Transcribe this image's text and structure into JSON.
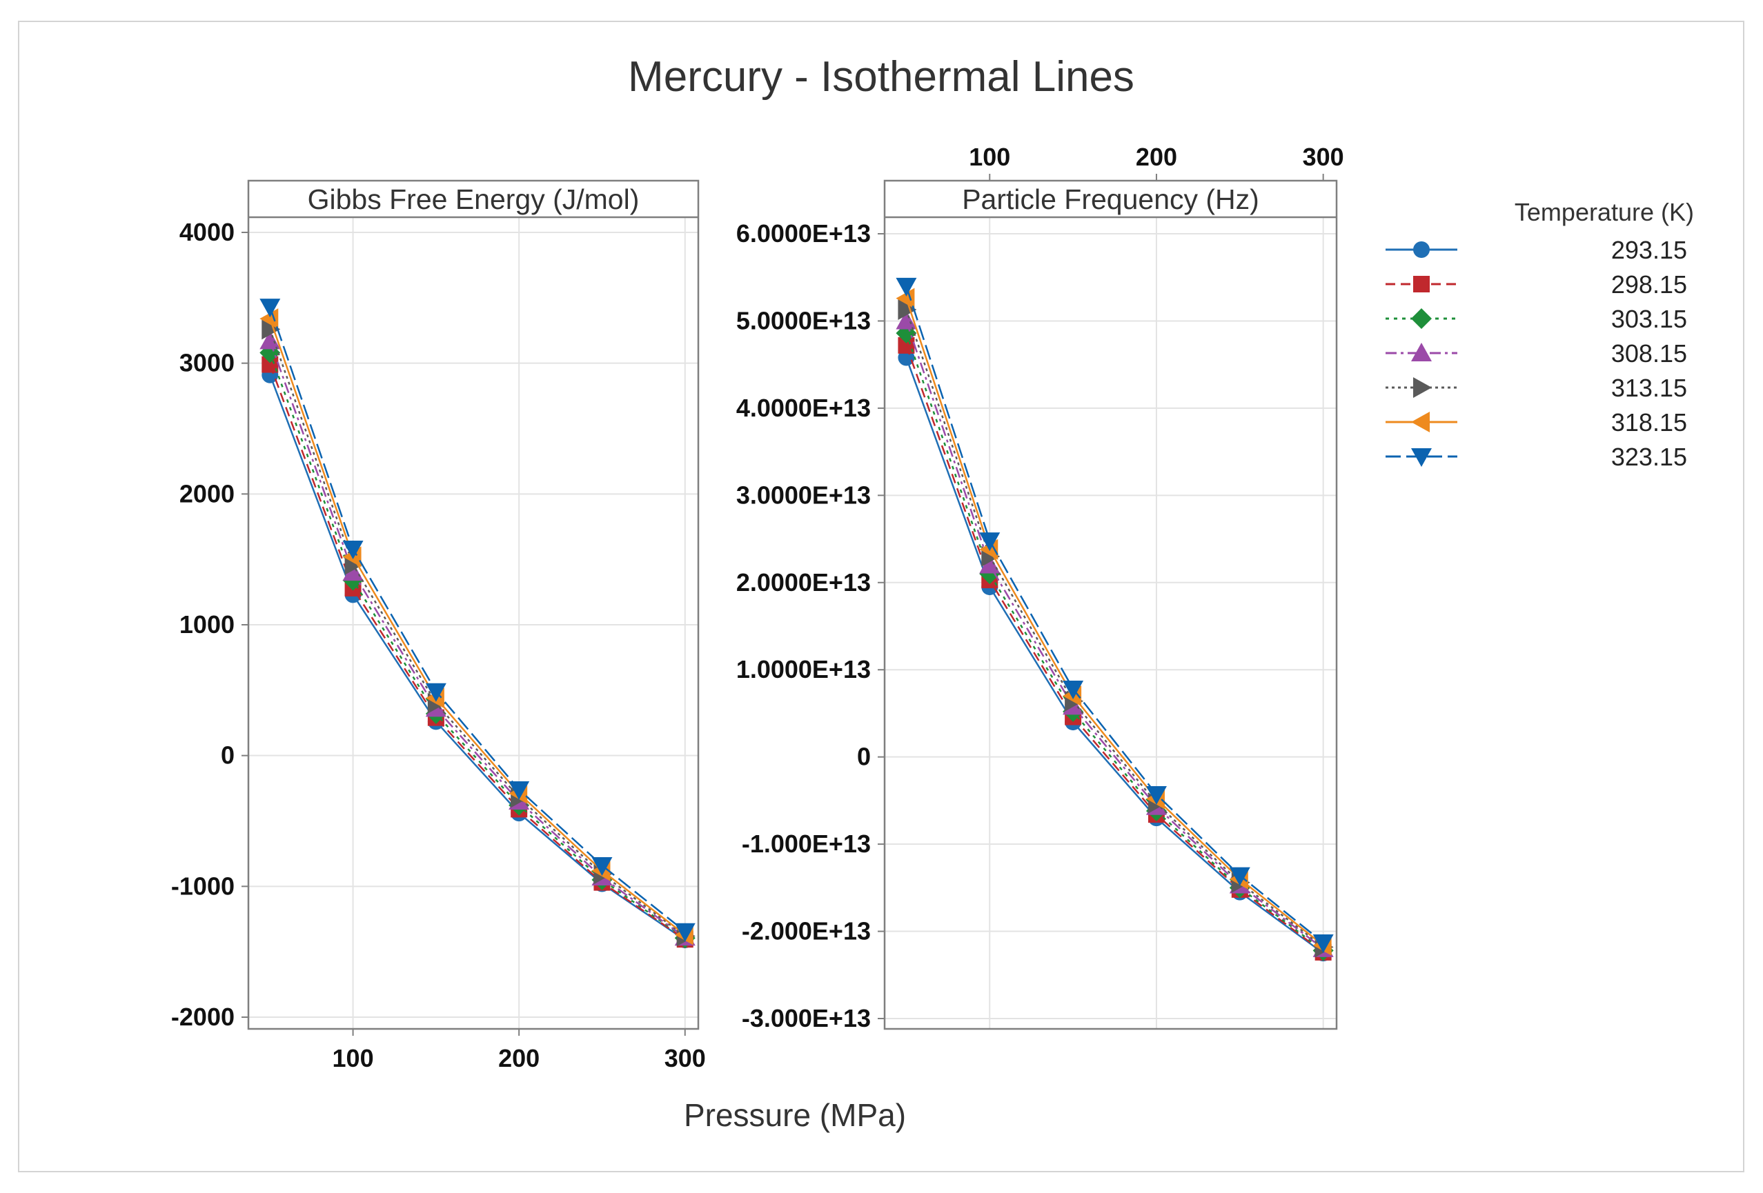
{
  "chart_data": {
    "type": "line",
    "title": "Mercury - Isothermal Lines",
    "xlabel": "Pressure (MPa)",
    "x": [
      50,
      100,
      150,
      200,
      250,
      300
    ],
    "xlim": [
      37,
      308
    ],
    "xticks": [
      100,
      200,
      300
    ],
    "legend": {
      "title": "Temperature (K)",
      "position": "right"
    },
    "panels": [
      {
        "name": "gibbs",
        "strip_label": "Gibbs Free Energy (J/mol)",
        "ylim": [
          -2100,
          4100
        ],
        "yticks": [
          4000,
          3000,
          2000,
          1000,
          0,
          -1000,
          -2000
        ],
        "ytick_labels": [
          "4000",
          "3000",
          "2000",
          "1000",
          "0",
          "-1000",
          "-2000"
        ],
        "xtick_labels": [
          "100",
          "200",
          "300"
        ],
        "grid": true,
        "series": [
          {
            "name": "293.15",
            "values": [
              2910,
              1230,
              260,
              -440,
              -980,
              -1410
            ]
          },
          {
            "name": "298.15",
            "values": [
              2990,
              1280,
              290,
              -410,
              -970,
              -1405
            ]
          },
          {
            "name": "303.15",
            "values": [
              3080,
              1340,
              320,
              -380,
              -950,
              -1395
            ]
          },
          {
            "name": "308.15",
            "values": [
              3170,
              1400,
              360,
              -350,
              -930,
              -1390
            ]
          },
          {
            "name": "313.15",
            "values": [
              3260,
              1460,
              400,
              -320,
              -905,
              -1380
            ]
          },
          {
            "name": "318.15",
            "values": [
              3340,
              1520,
              440,
              -290,
              -880,
              -1370
            ]
          },
          {
            "name": "323.15",
            "values": [
              3430,
              1580,
              490,
              -260,
              -840,
              -1345
            ]
          }
        ]
      },
      {
        "name": "frequency",
        "strip_label": "Particle Frequency (Hz)",
        "ylim": [
          -31500000000000.0,
          61000000000000.0
        ],
        "yticks": [
          60000000000000.0,
          50000000000000.0,
          40000000000000.0,
          30000000000000.0,
          20000000000000.0,
          10000000000000.0,
          0,
          -10000000000000.0,
          -20000000000000.0,
          -30000000000000.0
        ],
        "ytick_labels": [
          "6.0000E+13",
          "5.0000E+13",
          "4.0000E+13",
          "3.0000E+13",
          "2.0000E+13",
          "1.0000E+13",
          "0",
          "-1.000E+13",
          "-2.000E+13",
          "-3.000E+13"
        ],
        "xtick_labels": [
          "100",
          "200",
          "300"
        ],
        "grid": true,
        "series": [
          {
            "name": "293.15",
            "values": [
              45800000000000.0,
              19500000000000.0,
              4000000000000.0,
              -7000000000000.0,
              -15500000000000.0,
              -22500000000000.0
            ]
          },
          {
            "name": "298.15",
            "values": [
              47200000000000.0,
              20300000000000.0,
              4600000000000.0,
              -6600000000000.0,
              -15200000000000.0,
              -22400000000000.0
            ]
          },
          {
            "name": "303.15",
            "values": [
              48600000000000.0,
              21000000000000.0,
              5200000000000.0,
              -6200000000000.0,
              -15000000000000.0,
              -22200000000000.0
            ]
          },
          {
            "name": "308.15",
            "values": [
              50000000000000.0,
              22000000000000.0,
              5800000000000.0,
              -5700000000000.0,
              -14700000000000.0,
              -22000000000000.0
            ]
          },
          {
            "name": "313.15",
            "values": [
              51300000000000.0,
              23000000000000.0,
              6400000000000.0,
              -5300000000000.0,
              -14400000000000.0,
              -21800000000000.0
            ]
          },
          {
            "name": "318.15",
            "values": [
              52600000000000.0,
              23800000000000.0,
              7000000000000.0,
              -4800000000000.0,
              -14000000000000.0,
              -21600000000000.0
            ]
          },
          {
            "name": "323.15",
            "values": [
              54000000000000.0,
              24800000000000.0,
              7800000000000.0,
              -4300000000000.0,
              -13600000000000.0,
              -21300000000000.0
            ]
          }
        ]
      }
    ]
  },
  "series_styles": [
    {
      "name": "293.15",
      "color": "#1f6fb5",
      "marker": "circle",
      "dash": "solid"
    },
    {
      "name": "298.15",
      "color": "#c0282d",
      "marker": "square",
      "dash": "dash"
    },
    {
      "name": "303.15",
      "color": "#1e8f3a",
      "marker": "diamond",
      "dash": "dot"
    },
    {
      "name": "308.15",
      "color": "#9b4aa8",
      "marker": "triangle-up",
      "dash": "dashdot"
    },
    {
      "name": "313.15",
      "color": "#5a5a5a",
      "marker": "triangle-right",
      "dash": "shortdot"
    },
    {
      "name": "318.15",
      "color": "#ee8a1e",
      "marker": "triangle-left",
      "dash": "solid"
    },
    {
      "name": "323.15",
      "color": "#0b63b0",
      "marker": "triangle-down",
      "dash": "longdash"
    }
  ],
  "grid_color": "#e3e3e3",
  "frame_color": "#7f7f7f"
}
